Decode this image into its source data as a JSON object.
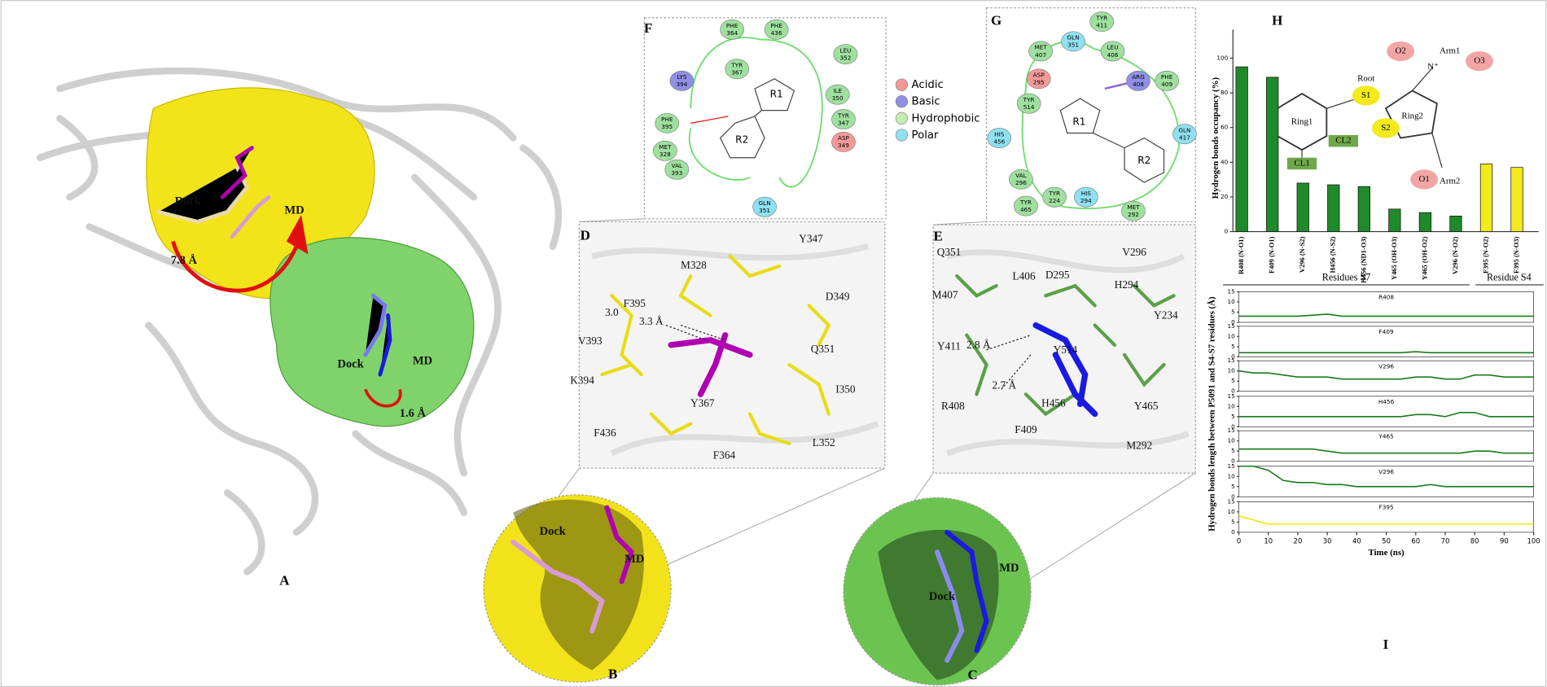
{
  "chart_data": [
    {
      "type": "bar",
      "ylabel": "Hydrogen bonds occupancy  (%)",
      "categories": [
        "R408 (N-O1)",
        "F409 (N-O1)",
        "V296 (N-S2)",
        "H456 (N-S2)",
        "H456 (ND1-O3)",
        "Y465 (OH-O3)",
        "Y465 (OH-O2)",
        "V296 (N-O2)",
        "F395 (N-O2)",
        "F395 (N-O3)"
      ],
      "values": [
        95,
        89,
        28,
        27,
        26,
        13,
        11,
        9,
        39,
        37
      ],
      "colors": [
        "#1f8a2a",
        "#1f8a2a",
        "#1f8a2a",
        "#1f8a2a",
        "#1f8a2a",
        "#1f8a2a",
        "#1f8a2a",
        "#1f8a2a",
        "#f2ea1c",
        "#f2ea1c"
      ],
      "ylim": [
        0,
        100
      ],
      "yticks": [
        0,
        20,
        40,
        60,
        80,
        100
      ]
    },
    {
      "type": "line",
      "xlabel": "Time (ns)",
      "ylabel": "Hydrogen bonds  length between P5091 and S4-S7 residues (Å)",
      "x": [
        0,
        5,
        10,
        15,
        20,
        25,
        30,
        35,
        40,
        45,
        50,
        55,
        60,
        65,
        70,
        75,
        80,
        85,
        90,
        95,
        100
      ],
      "xlim": [
        0,
        100
      ],
      "xticks": [
        0,
        10,
        20,
        30,
        40,
        50,
        60,
        70,
        80,
        90,
        100
      ],
      "ylim": [
        0,
        15
      ],
      "yticks": [
        0,
        5,
        10,
        15
      ],
      "series": [
        {
          "name": "R408",
          "color": "#1a7a1a",
          "values": [
            3,
            3,
            3,
            3,
            3,
            3.5,
            4,
            3,
            3,
            3,
            3,
            3,
            3,
            3,
            3,
            3,
            3,
            3,
            3,
            3,
            3
          ]
        },
        {
          "name": "F409",
          "color": "#1a7a1a",
          "values": [
            2,
            2,
            2,
            2,
            2,
            2,
            2,
            2,
            2,
            2,
            2,
            2,
            2.5,
            2,
            2,
            2,
            2,
            2,
            2,
            2,
            2
          ]
        },
        {
          "name": "V296",
          "color": "#1a7a1a",
          "values": [
            10,
            9,
            9,
            8,
            7,
            7,
            7,
            6,
            6,
            6,
            6,
            6,
            7,
            7,
            6,
            6,
            8,
            8,
            7,
            7,
            7
          ]
        },
        {
          "name": "H456",
          "color": "#1a7a1a",
          "values": [
            5,
            5,
            5,
            5,
            5,
            5,
            5,
            5,
            5,
            5,
            5,
            5,
            6,
            6,
            5,
            7,
            7,
            5,
            5,
            5,
            5
          ]
        },
        {
          "name": "Y465",
          "color": "#1a7a1a",
          "values": [
            6,
            6,
            6,
            6,
            6,
            6,
            5,
            4,
            4,
            4,
            4,
            4,
            4,
            4,
            4,
            4,
            5,
            5,
            4,
            4,
            4
          ]
        },
        {
          "name": "V296",
          "color": "#1a7a1a",
          "values": [
            15,
            15,
            13,
            8,
            7,
            7,
            6,
            6,
            5,
            5,
            5,
            5,
            5,
            6,
            5,
            5,
            5,
            5,
            5,
            5,
            5
          ]
        },
        {
          "name": "F395",
          "color": "#f5e600",
          "values": [
            8,
            6,
            4,
            4,
            4,
            4,
            4,
            4,
            4,
            4,
            4,
            4,
            4,
            4,
            4,
            4,
            4,
            4,
            4,
            4,
            4
          ]
        }
      ]
    }
  ],
  "figure": {
    "panel_letters": [
      "A",
      "B",
      "C",
      "D",
      "E",
      "F",
      "G",
      "H",
      "I"
    ],
    "panel_a": [
      "Dock",
      "MD",
      "7.8 Å",
      "Dock",
      "MD",
      "1.6 Å"
    ],
    "panel_b": [
      "Dock",
      "MD"
    ],
    "panel_c": [
      "MD",
      "Dock"
    ],
    "panel_d": [
      "M328",
      "Y347",
      "F395",
      "3.0",
      "3.3 Å",
      "D349",
      "V393",
      "Q351",
      "K394",
      "I350",
      "Y367",
      "F436",
      "L352",
      "F364"
    ],
    "panel_e": [
      "Q351",
      "D295",
      "V296",
      "M407",
      "L406",
      "H294",
      "Y234",
      "Y514",
      "Y411",
      "2.8 Å",
      "2.7 Å",
      "H456",
      "Y465",
      "R408",
      "F409",
      "M292"
    ],
    "panel_f": {
      "ligand": [
        "R1",
        "R2"
      ],
      "residues": [
        {
          "name": "PHE",
          "number": "364",
          "color": "#9fe09f"
        },
        {
          "name": "PHE",
          "number": "436",
          "color": "#9fe09f"
        },
        {
          "name": "TYR",
          "number": "367",
          "color": "#9fe09f"
        },
        {
          "name": "LEU",
          "number": "352",
          "color": "#9fe09f"
        },
        {
          "name": "LYS",
          "number": "394",
          "color": "#8f8fe8"
        },
        {
          "name": "ILE",
          "number": "350",
          "color": "#9fe09f"
        },
        {
          "name": "PHE",
          "number": "395",
          "color": "#9fe09f"
        },
        {
          "name": "TYR",
          "number": "347",
          "color": "#9fe09f"
        },
        {
          "name": "ASP",
          "number": "349",
          "color": "#f29a9a"
        },
        {
          "name": "MET",
          "number": "328",
          "color": "#9fe09f"
        },
        {
          "name": "VAL",
          "number": "393",
          "color": "#9fe09f"
        },
        {
          "name": "GLN",
          "number": "351",
          "color": "#8fe0f0"
        }
      ]
    },
    "panel_g": {
      "ligand": [
        "R1",
        "R2"
      ],
      "residues": [
        {
          "name": "TYR",
          "number": "411",
          "color": "#9fe09f"
        },
        {
          "name": "GLN",
          "number": "351",
          "color": "#8fe0f0"
        },
        {
          "name": "LEU",
          "number": "406",
          "color": "#9fe09f"
        },
        {
          "name": "MET",
          "number": "407",
          "color": "#9fe09f"
        },
        {
          "name": "ASP",
          "number": "295",
          "color": "#f29a9a"
        },
        {
          "name": "ARG",
          "number": "408",
          "color": "#8f8fe8"
        },
        {
          "name": "PHE",
          "number": "409",
          "color": "#9fe09f"
        },
        {
          "name": "TYR",
          "number": "514",
          "color": "#9fe09f"
        },
        {
          "name": "HIS",
          "number": "456",
          "color": "#8fe0f0"
        },
        {
          "name": "GLN",
          "number": "417",
          "color": "#8fe0f0"
        },
        {
          "name": "VAL",
          "number": "296",
          "color": "#9fe09f"
        },
        {
          "name": "TYR",
          "number": "224",
          "color": "#9fe09f"
        },
        {
          "name": "HIS",
          "number": "294",
          "color": "#8fe0f0"
        },
        {
          "name": "TYR",
          "number": "465",
          "color": "#9fe09f"
        },
        {
          "name": "MET",
          "number": "292",
          "color": "#9fe09f"
        }
      ]
    },
    "legend": [
      {
        "label": "Acidic",
        "color": "#f29a9a"
      },
      {
        "label": "Basic",
        "color": "#8f8fe8"
      },
      {
        "label": "Hydrophobic",
        "color": "#c5ecb0"
      },
      {
        "label": "Polar",
        "color": "#8fe0f0"
      }
    ],
    "molecule": [
      "Ring1",
      "CL1",
      "CL2",
      "S1",
      "Root",
      "S2",
      "Ring2",
      "O1",
      "Arm2",
      "O2",
      "Arm1",
      "O3",
      "N⁺"
    ],
    "brackets": [
      "Residues S7",
      "Residue S4"
    ]
  }
}
